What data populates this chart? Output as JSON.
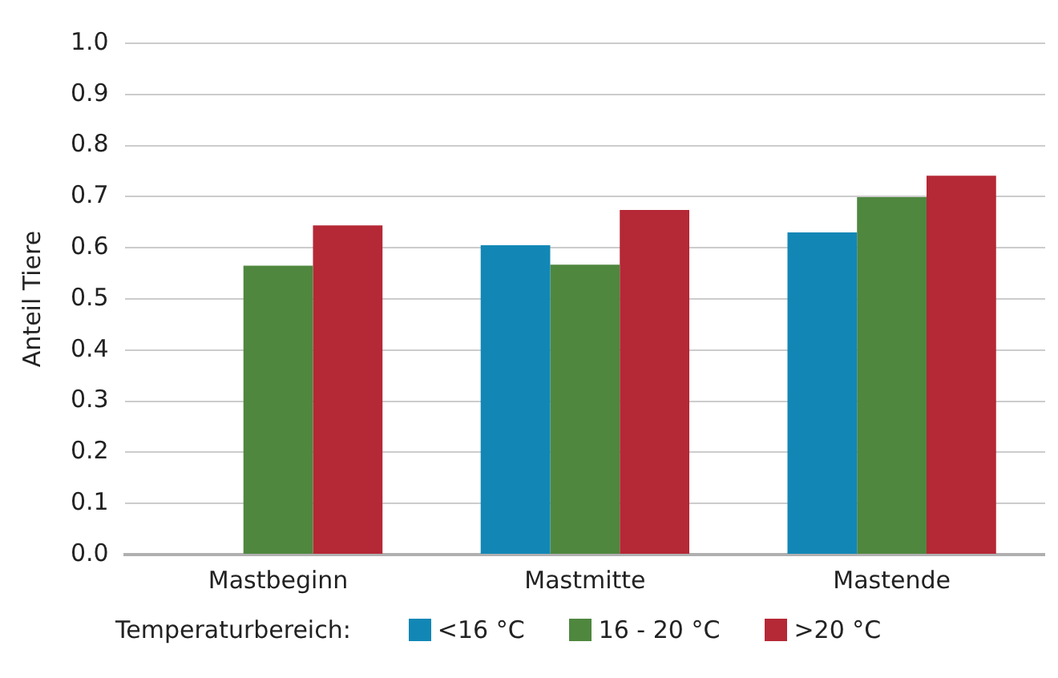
{
  "chart_data": {
    "type": "bar",
    "ylabel": "Anteil Tiere",
    "legend_title": "Temperaturbereich:",
    "categories": [
      "Mastbeginn",
      "Mastmitte",
      "Mastende"
    ],
    "series": [
      {
        "name": "<16 °C",
        "color": "#1287b6",
        "values": [
          null,
          0.605,
          0.63
        ]
      },
      {
        "name": "16 - 20 °C",
        "color": "#4f873f",
        "values": [
          0.565,
          0.567,
          0.699
        ]
      },
      {
        "name": ">20 °C",
        "color": "#b52836",
        "values": [
          0.644,
          0.674,
          0.741
        ]
      }
    ],
    "ylim": [
      0,
      1
    ],
    "yticks": [
      {
        "value": 0,
        "label": "0.0"
      },
      {
        "value": 0.1,
        "label": "0.1"
      },
      {
        "value": 0.2,
        "label": "0.2"
      },
      {
        "value": 0.3,
        "label": "0.3"
      },
      {
        "value": 0.4,
        "label": "0.4"
      },
      {
        "value": 0.5,
        "label": "0.5"
      },
      {
        "value": 0.6,
        "label": "0.6"
      },
      {
        "value": 0.7,
        "label": "0.7"
      },
      {
        "value": 0.8,
        "label": "0.8"
      },
      {
        "value": 0.9,
        "label": "0.9"
      },
      {
        "value": 1,
        "label": "1.0"
      }
    ],
    "grid": "y",
    "legend": "bottom"
  }
}
